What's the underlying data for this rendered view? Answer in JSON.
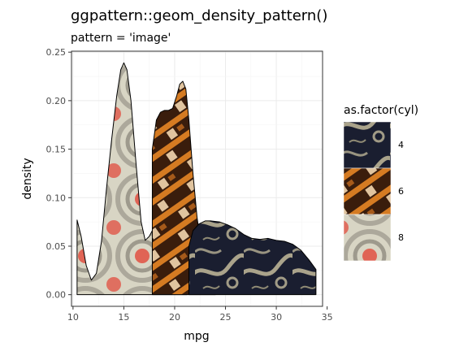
{
  "chart_data": {
    "type": "area",
    "title": "ggpattern::geom_density_pattern()",
    "subtitle": "pattern = 'image'",
    "xlabel": "mpg",
    "ylabel": "density",
    "xlim": [
      9.85,
      34.55
    ],
    "ylim": [
      -0.012,
      0.251
    ],
    "x_ticks": [
      10,
      15,
      20,
      25,
      30,
      35
    ],
    "y_ticks": [
      0.0,
      0.05,
      0.1,
      0.15,
      0.2,
      0.25
    ],
    "y_tick_labels": [
      "0.00",
      "0.05",
      "0.10",
      "0.15",
      "0.20",
      "0.25"
    ],
    "grid": true,
    "legend": {
      "title": "as.factor(cyl)",
      "position": "right",
      "entries": [
        "4",
        "6",
        "8"
      ]
    },
    "series": [
      {
        "name": "8",
        "texture": "floral-rings",
        "colors": {
          "base": "#d8d5c4",
          "accent": "#e06455",
          "mid": "#9a968a"
        },
        "points": [
          [
            10.4,
            0.077
          ],
          [
            10.8,
            0.06
          ],
          [
            11.3,
            0.03
          ],
          [
            11.8,
            0.015
          ],
          [
            12.3,
            0.022
          ],
          [
            12.8,
            0.055
          ],
          [
            13.3,
            0.11
          ],
          [
            13.8,
            0.16
          ],
          [
            14.3,
            0.205
          ],
          [
            14.7,
            0.232
          ],
          [
            15.0,
            0.239
          ],
          [
            15.3,
            0.232
          ],
          [
            15.7,
            0.2
          ],
          [
            16.2,
            0.135
          ],
          [
            16.7,
            0.075
          ],
          [
            17.1,
            0.056
          ],
          [
            17.5,
            0.06
          ],
          [
            17.9,
            0.068
          ],
          [
            18.4,
            0.075
          ],
          [
            18.9,
            0.07
          ],
          [
            19.3,
            0.05
          ],
          [
            19.8,
            0.025
          ],
          [
            20.3,
            0.008
          ],
          [
            20.8,
            0.0005
          ],
          [
            21.2,
            0.0
          ]
        ]
      },
      {
        "name": "6",
        "texture": "wood-blocks",
        "colors": {
          "base": "#3a1d0c",
          "accent": "#d57b22",
          "mid": "#f2d6b0"
        },
        "points": [
          [
            17.8,
            0.0
          ],
          [
            17.8,
            0.15
          ],
          [
            18.2,
            0.18
          ],
          [
            18.6,
            0.188
          ],
          [
            19.0,
            0.19
          ],
          [
            19.4,
            0.19
          ],
          [
            19.8,
            0.192
          ],
          [
            20.2,
            0.205
          ],
          [
            20.5,
            0.217
          ],
          [
            20.8,
            0.22
          ],
          [
            21.1,
            0.212
          ],
          [
            21.4,
            0.18
          ],
          [
            21.8,
            0.125
          ],
          [
            22.2,
            0.08
          ],
          [
            22.6,
            0.05
          ],
          [
            23.0,
            0.03
          ],
          [
            23.4,
            0.015
          ],
          [
            23.8,
            0.006
          ],
          [
            24.0,
            0.0
          ]
        ]
      },
      {
        "name": "4",
        "texture": "navy-swirl",
        "colors": {
          "base": "#1a1e30",
          "accent": "#b9b295",
          "mid": "#2c3348"
        },
        "points": [
          [
            21.4,
            0.0
          ],
          [
            21.4,
            0.05
          ],
          [
            21.8,
            0.066
          ],
          [
            22.4,
            0.073
          ],
          [
            23.0,
            0.076
          ],
          [
            23.6,
            0.076
          ],
          [
            24.4,
            0.075
          ],
          [
            25.2,
            0.072
          ],
          [
            26.0,
            0.068
          ],
          [
            26.8,
            0.062
          ],
          [
            27.6,
            0.058
          ],
          [
            28.4,
            0.057
          ],
          [
            29.2,
            0.058
          ],
          [
            30.0,
            0.056
          ],
          [
            30.8,
            0.055
          ],
          [
            31.6,
            0.052
          ],
          [
            32.4,
            0.046
          ],
          [
            33.2,
            0.036
          ],
          [
            33.9,
            0.026
          ],
          [
            33.9,
            0.0
          ]
        ]
      }
    ]
  }
}
